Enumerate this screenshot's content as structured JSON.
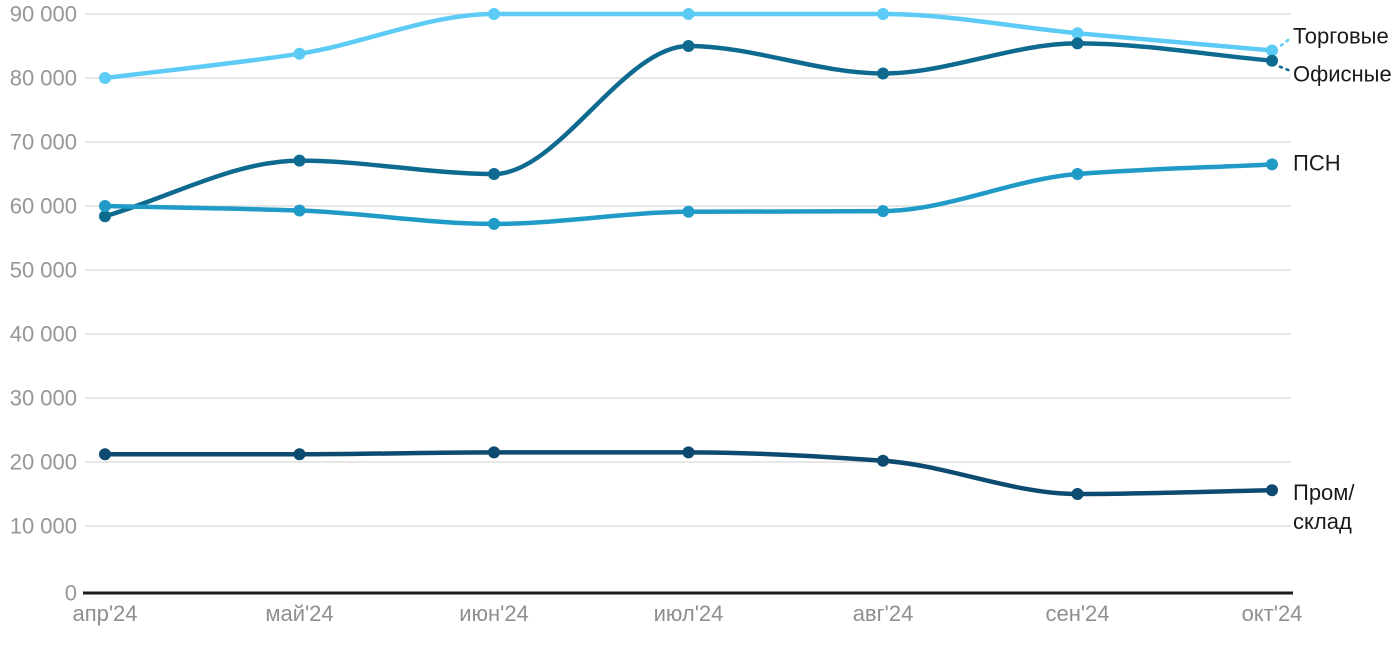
{
  "chart_data": {
    "type": "line",
    "title": "",
    "categories": [
      "апр'24",
      "май'24",
      "июн'24",
      "июл'24",
      "авг'24",
      "сен'24",
      "окт'24"
    ],
    "series": [
      {
        "name": "Торговые",
        "slug": "torgovye",
        "color": "#5CCBF5",
        "values": [
          80000,
          83800,
          90000,
          90000,
          90000,
          87000,
          84300
        ],
        "label_lines": [
          "Торговые"
        ],
        "label_dy": -15,
        "leader": "up"
      },
      {
        "name": "Офисные",
        "slug": "ofisnye",
        "color": "#0F6A90",
        "values": [
          58400,
          67100,
          65000,
          85000,
          80700,
          85400,
          82700
        ],
        "label_lines": [
          "Офисные"
        ],
        "label_dy": 13,
        "leader": "down"
      },
      {
        "name": "ПСН",
        "slug": "psn",
        "color": "#209BC7",
        "values": [
          60000,
          59300,
          57200,
          59100,
          59200,
          65000,
          66500
        ],
        "label_lines": [
          "ПСН"
        ],
        "label_dy": -2,
        "leader": "none"
      },
      {
        "name": "Пром/склад",
        "slug": "prom-sklad",
        "color": "#0C4A70",
        "values": [
          21200,
          21200,
          21500,
          21500,
          20200,
          15000,
          15600
        ],
        "label_lines": [
          "Пром/",
          "склад"
        ],
        "label_dy": 2,
        "leader": "none"
      }
    ],
    "ylim": [
      0,
      90000
    ],
    "ytick_step": 10000,
    "y_tick_labels": [
      "0",
      "10 000",
      "20 000",
      "30 000",
      "40 000",
      "50 000",
      "60 000",
      "70 000",
      "80 000",
      "90 000"
    ],
    "grid": true,
    "legend_position": "right-end-of-line-labels"
  },
  "styles": {
    "tick_color": "#969696",
    "xtick_color": "#8f8f8f",
    "grid_color": "#e7e7e7",
    "axis_color": "#1c1c1c",
    "series_label_color": "#1a1a1a",
    "background": "#ffffff"
  }
}
